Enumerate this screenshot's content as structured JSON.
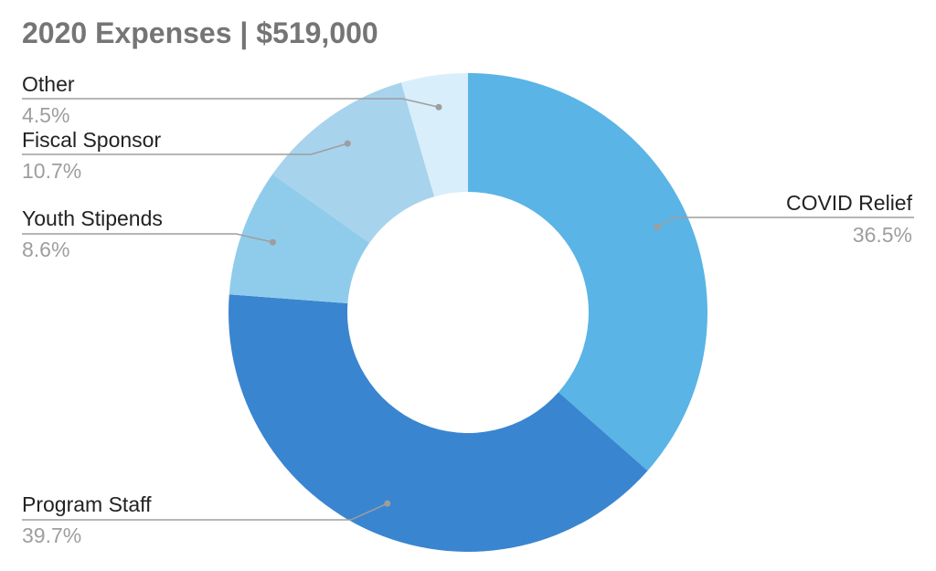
{
  "chart_data": {
    "type": "pie",
    "title": "2020 Expenses | $519,000",
    "donut": true,
    "slices": [
      {
        "label": "COVID Relief",
        "value": 36.5,
        "display": "36.5%",
        "color": "#5ab4e5"
      },
      {
        "label": "Program Staff",
        "value": 39.7,
        "display": "39.7%",
        "color": "#3a85d0"
      },
      {
        "label": "Youth Stipends",
        "value": 8.6,
        "display": "8.6%",
        "color": "#8fccec"
      },
      {
        "label": "Fiscal Sponsor",
        "value": 10.7,
        "display": "10.7%",
        "color": "#a8d3ec"
      },
      {
        "label": "Other",
        "value": 4.5,
        "display": "4.5%",
        "color": "#d9eefb"
      }
    ],
    "legend": "none"
  }
}
